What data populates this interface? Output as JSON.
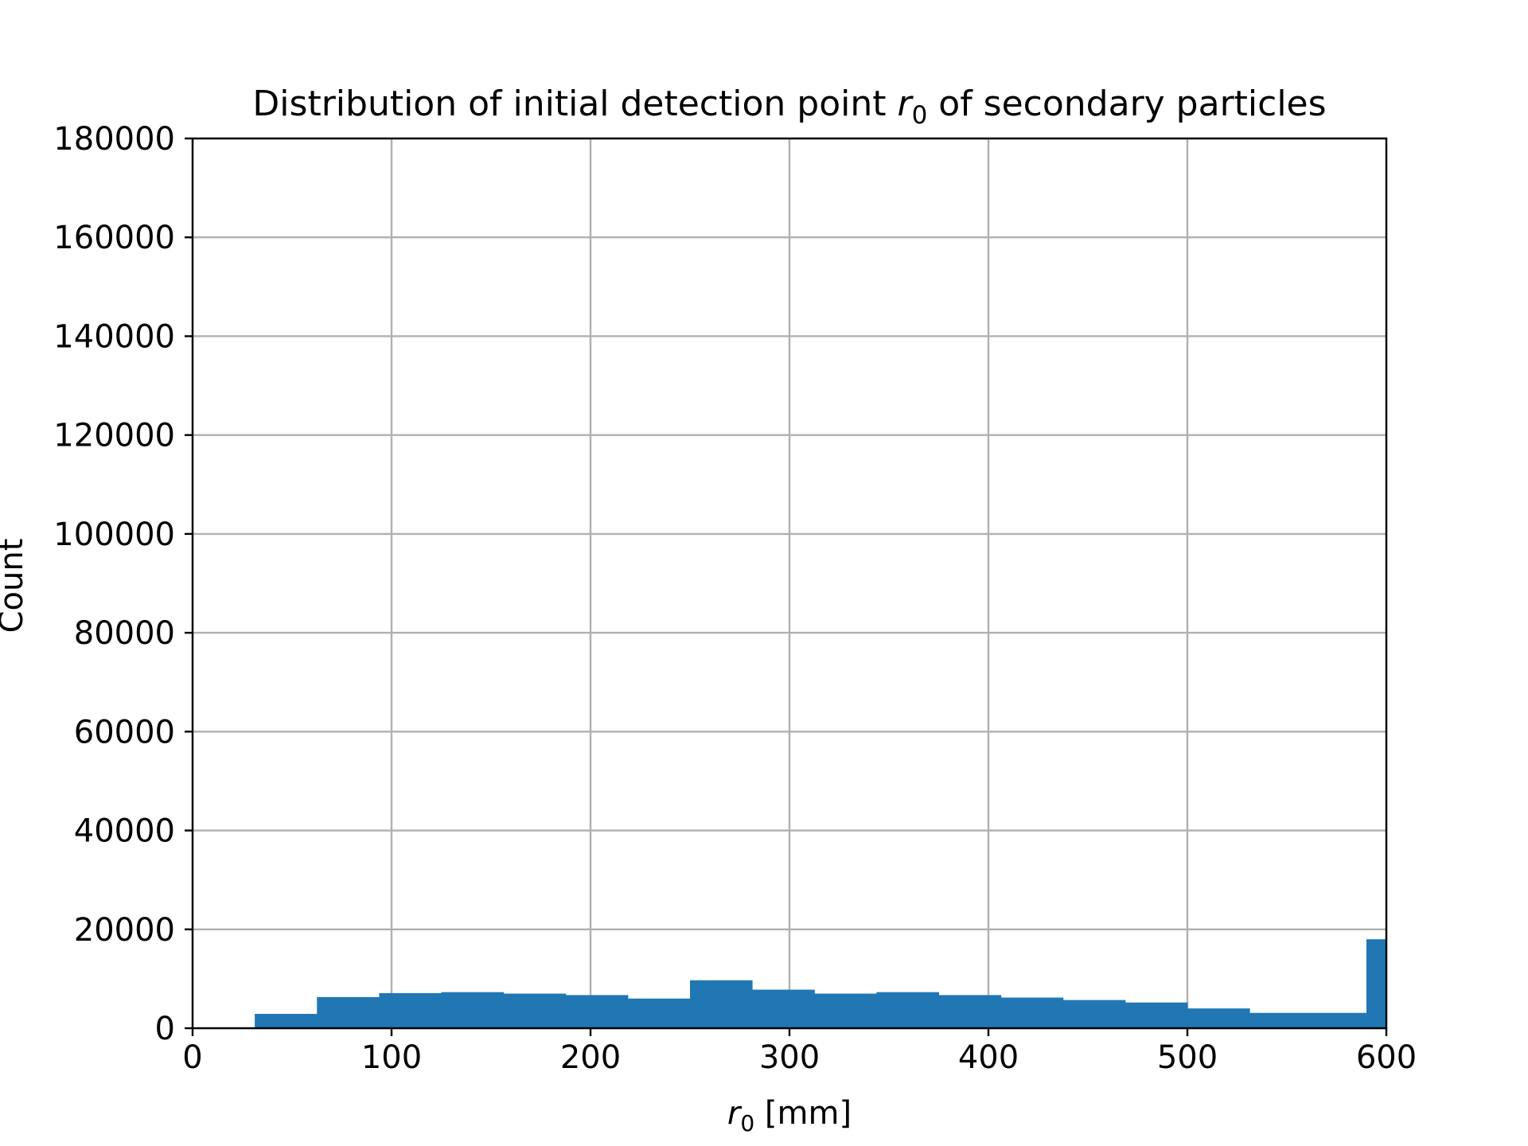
{
  "chart_data": {
    "type": "bar",
    "title_main": "Distribution of initial detection point ",
    "title_var": "r",
    "title_sub": "0",
    "title_rest": " of secondary particles",
    "xlabel_var": "r",
    "xlabel_sub": "0",
    "xlabel_rest": " [mm]",
    "ylabel": "Count",
    "xlim": [
      0,
      600
    ],
    "ylim": [
      0,
      180000
    ],
    "xticks": [
      0,
      100,
      200,
      300,
      400,
      500,
      600
    ],
    "yticks": [
      0,
      20000,
      40000,
      60000,
      80000,
      100000,
      120000,
      140000,
      160000,
      180000
    ],
    "grid": true,
    "bar_color": "#2077b4",
    "bins": [
      {
        "x0": 0.0,
        "x1": 31.25,
        "count": 0
      },
      {
        "x0": 31.25,
        "x1": 62.5,
        "count": 2900
      },
      {
        "x0": 62.5,
        "x1": 93.75,
        "count": 6300
      },
      {
        "x0": 93.75,
        "x1": 125.0,
        "count": 7100
      },
      {
        "x0": 125.0,
        "x1": 156.25,
        "count": 7300
      },
      {
        "x0": 156.25,
        "x1": 187.5,
        "count": 7000
      },
      {
        "x0": 187.5,
        "x1": 218.75,
        "count": 6700
      },
      {
        "x0": 218.75,
        "x1": 250.0,
        "count": 6000
      },
      {
        "x0": 250.0,
        "x1": 281.25,
        "count": 9700
      },
      {
        "x0": 281.25,
        "x1": 312.5,
        "count": 7800
      },
      {
        "x0": 312.5,
        "x1": 343.75,
        "count": 7000
      },
      {
        "x0": 343.75,
        "x1": 375.0,
        "count": 7300
      },
      {
        "x0": 375.0,
        "x1": 406.25,
        "count": 6700
      },
      {
        "x0": 406.25,
        "x1": 437.5,
        "count": 6200
      },
      {
        "x0": 437.5,
        "x1": 468.75,
        "count": 5700
      },
      {
        "x0": 468.75,
        "x1": 500.0,
        "count": 5200
      },
      {
        "x0": 500.0,
        "x1": 531.25,
        "count": 4000
      },
      {
        "x0": 531.25,
        "x1": 562.5,
        "count": 3100
      },
      {
        "x0": 562.5,
        "x1": 590.0,
        "count": 3100
      },
      {
        "x0": 590.0,
        "x1": 600.0,
        "count": 18000
      }
    ]
  }
}
